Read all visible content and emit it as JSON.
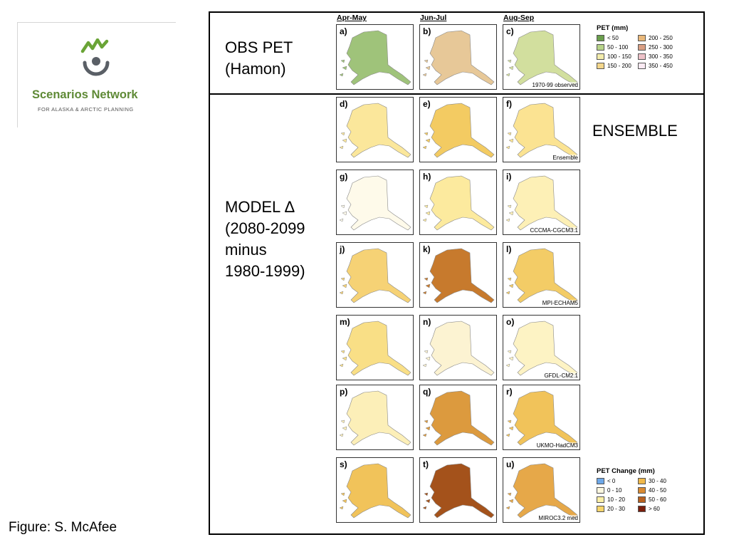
{
  "logo": {
    "title": "Scenarios Network",
    "subtitle": "FOR ALASKA & ARCTIC PLANNING"
  },
  "labels": {
    "obs_line1": "OBS PET",
    "obs_line2": "(Hamon)",
    "model_line1": "MODEL Δ",
    "model_line2": "(2080-2099",
    "model_line3": "minus",
    "model_line4": "1980-1999)",
    "ensemble": "ENSEMBLE",
    "credit": "Figure: S. McAfee"
  },
  "columns": [
    "Apr-May",
    "Jun-Jul",
    "Aug-Sep"
  ],
  "rows": [
    {
      "panels": [
        {
          "label": "a)",
          "fill": "#9fc37a"
        },
        {
          "label": "b)",
          "fill": "#e7c898"
        },
        {
          "label": "c)",
          "fill": "#d2df9e",
          "caption": "1970-99 observed"
        }
      ]
    },
    {
      "panels": [
        {
          "label": "d)",
          "fill": "#fbe79b"
        },
        {
          "label": "e)",
          "fill": "#f3cb62"
        },
        {
          "label": "f)",
          "fill": "#fbe392",
          "caption": "Ensemble"
        }
      ]
    },
    {
      "panels": [
        {
          "label": "g)",
          "fill": "#fefaea"
        },
        {
          "label": "h)",
          "fill": "#fcea9e"
        },
        {
          "label": "i)",
          "fill": "#fdf0b6",
          "caption": "CCCMA-CGCM3.1"
        }
      ]
    },
    {
      "panels": [
        {
          "label": "j)",
          "fill": "#f6d275"
        },
        {
          "label": "k)",
          "fill": "#c77a2d"
        },
        {
          "label": "l)",
          "fill": "#f3cc66",
          "caption": "MPI-ECHAM5"
        }
      ]
    },
    {
      "panels": [
        {
          "label": "m)",
          "fill": "#f9df86"
        },
        {
          "label": "n)",
          "fill": "#fcf3d2"
        },
        {
          "label": "o)",
          "fill": "#fdf3c4",
          "caption": "GFDL-CM2.1"
        }
      ]
    },
    {
      "panels": [
        {
          "label": "p)",
          "fill": "#fcefb8"
        },
        {
          "label": "q)",
          "fill": "#dc9a3e"
        },
        {
          "label": "r)",
          "fill": "#f1c35a",
          "caption": "UKMO-HadCM3"
        }
      ]
    },
    {
      "panels": [
        {
          "label": "s)",
          "fill": "#f1c35a"
        },
        {
          "label": "t)",
          "fill": "#a4521b"
        },
        {
          "label": "u)",
          "fill": "#e6a849",
          "caption": "MIROC3.2 med"
        }
      ]
    }
  ],
  "legend_pet": {
    "title": "PET (mm)",
    "items": [
      {
        "label": "< 50",
        "color": "#6a9e4c"
      },
      {
        "label": "200 - 250",
        "color": "#e9b87a"
      },
      {
        "label": "50 - 100",
        "color": "#b7d389"
      },
      {
        "label": "250 - 300",
        "color": "#d99f84"
      },
      {
        "label": "100 - 150",
        "color": "#f3ecac"
      },
      {
        "label": "300 - 350",
        "color": "#eec2c9"
      },
      {
        "label": "150 - 200",
        "color": "#f3d68b"
      },
      {
        "label": "350 - 450",
        "color": "#fbeaf3"
      }
    ]
  },
  "legend_change": {
    "title": "PET Change (mm)",
    "items": [
      {
        "label": "< 0",
        "color": "#6ea8e8"
      },
      {
        "label": "30 - 40",
        "color": "#f0b84a"
      },
      {
        "label": "0 - 10",
        "color": "#fdf8e0"
      },
      {
        "label": "40 - 50",
        "color": "#d98a32"
      },
      {
        "label": "10 - 20",
        "color": "#fdf0a6"
      },
      {
        "label": "50 - 60",
        "color": "#b8611f"
      },
      {
        "label": "20 - 30",
        "color": "#f7d56a"
      },
      {
        "label": "> 60",
        "color": "#7a1e0c"
      }
    ]
  }
}
